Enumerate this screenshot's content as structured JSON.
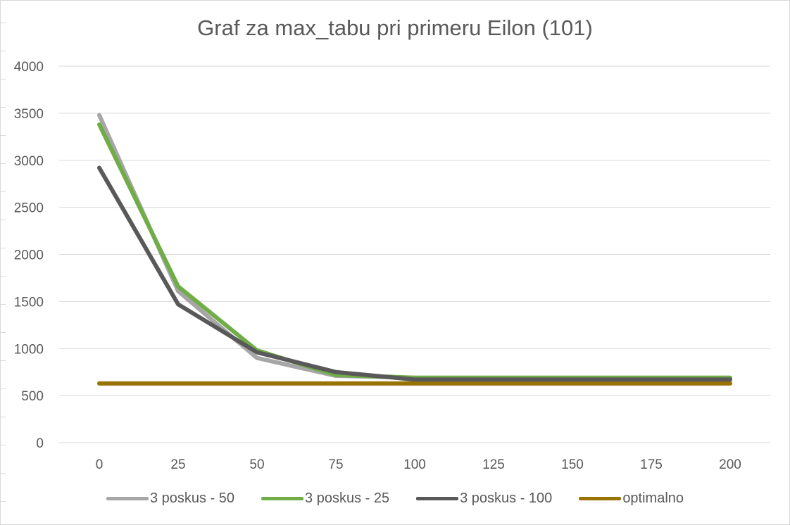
{
  "chart_data": {
    "type": "line",
    "title": "Graf za max_tabu pri primeru Eilon (101)",
    "xlabel": "",
    "ylabel": "",
    "categories": [
      "0",
      "25",
      "50",
      "75",
      "100",
      "125",
      "150",
      "175",
      "200"
    ],
    "ylim": [
      0,
      4000
    ],
    "yticks": [
      "0",
      "500",
      "1000",
      "1500",
      "2000",
      "2500",
      "3000",
      "3500",
      "4000"
    ],
    "grid": true,
    "legend_position": "bottom",
    "series": [
      {
        "name": "3 poskus - 50",
        "color": "#a6a6a6",
        "values": [
          3480,
          1610,
          900,
          710,
          690,
          690,
          690,
          690,
          690
        ]
      },
      {
        "name": "3 poskus - 25",
        "color": "#70ad47",
        "values": [
          3380,
          1660,
          980,
          720,
          690,
          690,
          690,
          690,
          690
        ]
      },
      {
        "name": "3 poskus - 100",
        "color": "#595959",
        "values": [
          2920,
          1470,
          960,
          750,
          670,
          670,
          670,
          670,
          670
        ]
      },
      {
        "name": "optimalno",
        "color": "#997300",
        "values": [
          629,
          629,
          629,
          629,
          629,
          629,
          629,
          629,
          629
        ]
      }
    ]
  }
}
